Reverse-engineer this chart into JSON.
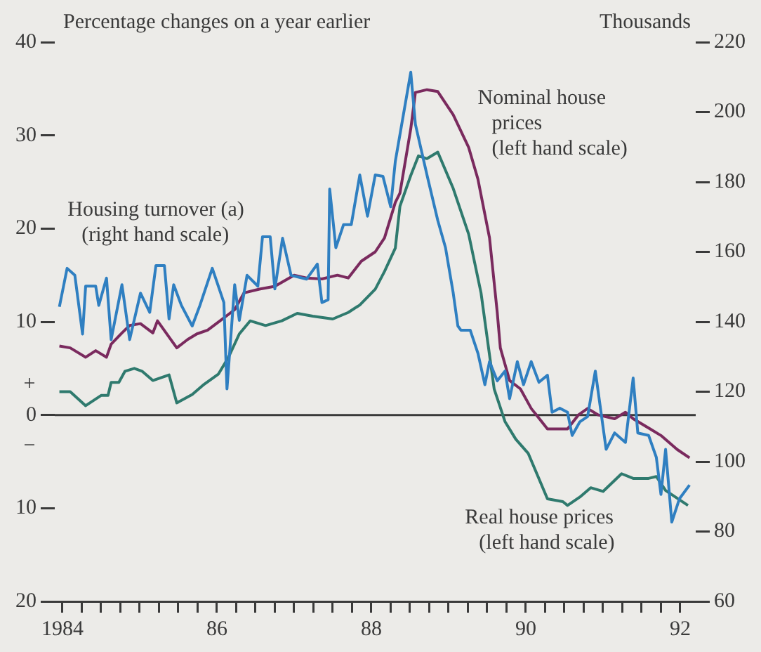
{
  "chart_data": {
    "type": "line",
    "title": "Percentage changes on a year earlier",
    "y2label": "Thousands",
    "annotations": [
      "+",
      "−"
    ],
    "xlim": [
      1983.9,
      1992.2
    ],
    "xticks": [
      {
        "value": 1984,
        "label": "1984"
      },
      {
        "value": 1984.25,
        "label": null
      },
      {
        "value": 1984.5,
        "label": null
      },
      {
        "value": 1984.75,
        "label": null
      },
      {
        "value": 1985,
        "label": null
      },
      {
        "value": 1985.25,
        "label": null
      },
      {
        "value": 1985.5,
        "label": null
      },
      {
        "value": 1985.75,
        "label": null
      },
      {
        "value": 1986,
        "label": "86"
      },
      {
        "value": 1986.25,
        "label": null
      },
      {
        "value": 1986.5,
        "label": null
      },
      {
        "value": 1986.75,
        "label": null
      },
      {
        "value": 1987,
        "label": null
      },
      {
        "value": 1987.25,
        "label": null
      },
      {
        "value": 1987.5,
        "label": null
      },
      {
        "value": 1987.75,
        "label": null
      },
      {
        "value": 1988,
        "label": "88"
      },
      {
        "value": 1988.25,
        "label": null
      },
      {
        "value": 1988.5,
        "label": null
      },
      {
        "value": 1988.75,
        "label": null
      },
      {
        "value": 1989,
        "label": null
      },
      {
        "value": 1989.25,
        "label": null
      },
      {
        "value": 1989.5,
        "label": null
      },
      {
        "value": 1989.75,
        "label": null
      },
      {
        "value": 1990,
        "label": "90"
      },
      {
        "value": 1990.25,
        "label": null
      },
      {
        "value": 1990.5,
        "label": null
      },
      {
        "value": 1990.75,
        "label": null
      },
      {
        "value": 1991,
        "label": null
      },
      {
        "value": 1991.25,
        "label": null
      },
      {
        "value": 1991.5,
        "label": null
      },
      {
        "value": 1991.75,
        "label": null
      },
      {
        "value": 1992,
        "label": "92"
      }
    ],
    "ylim": [
      -20,
      40
    ],
    "yticks": [
      {
        "value": -20,
        "label": "20"
      },
      {
        "value": -10,
        "label": "10"
      },
      0,
      10,
      20,
      30,
      40
    ],
    "y2lim": [
      60,
      220
    ],
    "y2ticks": [
      60,
      80,
      100,
      120,
      140,
      160,
      180,
      200,
      220
    ],
    "grid": false,
    "legend": false,
    "marker": "none",
    "line_style": "solid",
    "ref_lines": [
      {
        "axis": "y",
        "value": 0,
        "label": null,
        "color": "#3a3a3a"
      }
    ],
    "series": [
      {
        "name": "Housing turnover (a) (right hand scale)",
        "color": "#2f7fc1",
        "axis": "y2",
        "x": [
          1983.96,
          1984.06,
          1984.16,
          1984.26,
          1984.3,
          1984.43,
          1984.47,
          1984.57,
          1984.63,
          1984.77,
          1984.87,
          1985.01,
          1985.13,
          1985.21,
          1985.32,
          1985.38,
          1985.44,
          1985.54,
          1985.68,
          1985.78,
          1985.94,
          1986.09,
          1986.13,
          1986.23,
          1986.29,
          1986.39,
          1986.53,
          1986.59,
          1986.69,
          1986.75,
          1986.85,
          1986.96,
          1987.16,
          1987.3,
          1987.36,
          1987.44,
          1987.46,
          1987.54,
          1987.64,
          1987.74,
          1987.85,
          1987.95,
          1988.05,
          1988.15,
          1988.25,
          1988.31,
          1988.51,
          1988.57,
          1988.72,
          1988.86,
          1988.96,
          1989.06,
          1989.12,
          1989.16,
          1989.28,
          1989.38,
          1989.47,
          1989.53,
          1989.63,
          1989.73,
          1989.79,
          1989.89,
          1989.97,
          1990.07,
          1990.17,
          1990.28,
          1990.34,
          1990.44,
          1990.54,
          1990.6,
          1990.7,
          1990.8,
          1990.9,
          1991.04,
          1991.15,
          1991.29,
          1991.39,
          1991.45,
          1991.59,
          1991.69,
          1991.75,
          1991.81,
          1991.89,
          1991.99,
          1992.12
        ],
        "values": [
          144.3,
          155.3,
          153.3,
          136.5,
          150.2,
          150.2,
          144.7,
          152.5,
          134.9,
          150.6,
          134.9,
          148.2,
          142.7,
          156.1,
          156.1,
          140.8,
          150.6,
          144.7,
          138.8,
          144.7,
          155.3,
          145.5,
          120.8,
          150.6,
          140.4,
          153.3,
          150.2,
          164.3,
          164.3,
          149.4,
          163.9,
          153.3,
          152.2,
          156.5,
          145.5,
          146.3,
          178,
          161.2,
          167.8,
          167.8,
          182,
          170.2,
          182,
          181.6,
          172.9,
          185.9,
          211.4,
          196.5,
          182,
          169,
          161.2,
          148.2,
          138.8,
          137.6,
          137.6,
          131,
          122,
          128.6,
          123.1,
          125.9,
          118,
          128.6,
          122,
          128.6,
          122.7,
          124.7,
          114.1,
          115.3,
          114.1,
          107.5,
          111.4,
          112.9,
          125.9,
          103.5,
          108.2,
          105.5,
          123.9,
          108.2,
          107.5,
          101.2,
          90.6,
          103.5,
          82.7,
          89.4,
          93.3
        ]
      },
      {
        "name": "Nominal house prices (left hand scale)",
        "color": "#7a2a5e",
        "x": [
          1983.96,
          1984.1,
          1984.3,
          1984.43,
          1984.57,
          1984.63,
          1984.77,
          1984.87,
          1985.01,
          1985.17,
          1985.23,
          1985.48,
          1985.62,
          1985.74,
          1985.88,
          1986.04,
          1986.23,
          1986.35,
          1986.55,
          1986.75,
          1987,
          1987.16,
          1987.36,
          1987.56,
          1987.7,
          1987.87,
          1988.05,
          1988.17,
          1988.31,
          1988.37,
          1988.51,
          1988.57,
          1988.72,
          1988.86,
          1989.06,
          1989.26,
          1989.38,
          1989.53,
          1989.63,
          1989.67,
          1989.79,
          1989.93,
          1990.07,
          1990.28,
          1990.54,
          1990.68,
          1990.8,
          1990.94,
          1991.15,
          1991.29,
          1991.39,
          1991.61,
          1991.75,
          1991.96,
          1992.12
        ],
        "values": [
          7.4,
          7.2,
          6.2,
          6.9,
          6.2,
          7.6,
          8.8,
          9.6,
          9.8,
          8.8,
          10.1,
          7.2,
          8.1,
          8.7,
          9.1,
          10.1,
          11.3,
          13.1,
          13.5,
          13.8,
          15,
          14.7,
          14.6,
          15,
          14.7,
          16.5,
          17.5,
          19,
          22.8,
          23.8,
          30.7,
          34.6,
          34.9,
          34.7,
          32.2,
          28.7,
          25.3,
          19,
          11,
          7.2,
          3.7,
          2.8,
          0.7,
          -1.5,
          -1.5,
          0,
          0.7,
          0,
          -0.4,
          0.3,
          -0.4,
          -1.5,
          -2.2,
          -3.7,
          -4.6
        ]
      },
      {
        "name": "Real house prices (left hand scale)",
        "color": "#2f7a6e",
        "x": [
          1983.96,
          1984.1,
          1984.3,
          1984.5,
          1984.59,
          1984.63,
          1984.73,
          1984.81,
          1984.93,
          1985.03,
          1985.17,
          1985.38,
          1985.48,
          1985.68,
          1985.82,
          1986.02,
          1986.15,
          1986.29,
          1986.43,
          1986.63,
          1986.84,
          1987.04,
          1987.24,
          1987.5,
          1987.7,
          1987.85,
          1988.05,
          1988.17,
          1988.31,
          1988.37,
          1988.51,
          1988.61,
          1988.72,
          1988.86,
          1989.06,
          1989.26,
          1989.42,
          1989.59,
          1989.73,
          1989.87,
          1990.03,
          1990.28,
          1990.48,
          1990.54,
          1990.7,
          1990.84,
          1991.0,
          1991.24,
          1991.39,
          1991.59,
          1991.69,
          1991.81,
          1992.1
        ],
        "values": [
          2.5,
          2.5,
          1,
          2.1,
          2.1,
          3.5,
          3.5,
          4.7,
          5,
          4.7,
          3.7,
          4.3,
          1.3,
          2.2,
          3.2,
          4.4,
          6.2,
          8.7,
          10.1,
          9.6,
          10.1,
          10.9,
          10.6,
          10.3,
          11,
          11.8,
          13.5,
          15.4,
          17.9,
          22.4,
          25.7,
          27.8,
          27.5,
          28.2,
          24.3,
          19.4,
          13.1,
          2.8,
          -0.7,
          -2.6,
          -4.1,
          -9,
          -9.3,
          -9.7,
          -8.8,
          -7.8,
          -8.2,
          -6.3,
          -6.8,
          -6.8,
          -6.6,
          -8.1,
          -9.7
        ]
      }
    ]
  }
}
